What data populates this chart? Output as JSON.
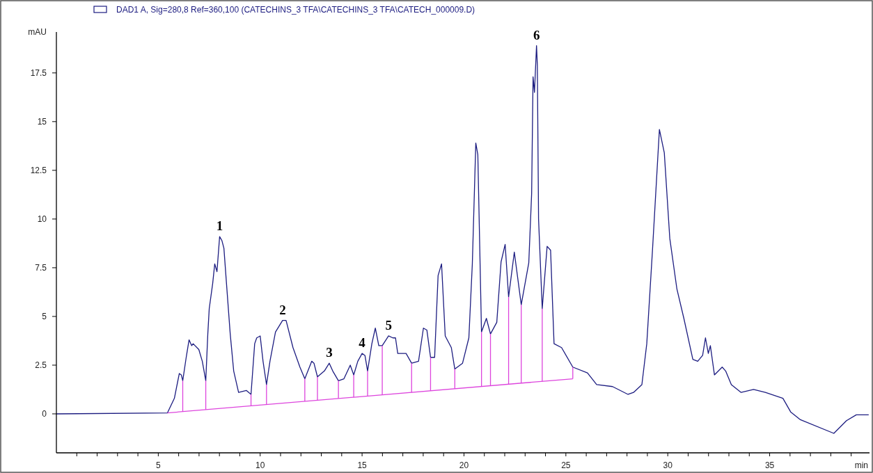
{
  "chart_data": {
    "type": "line",
    "xlabel": "min",
    "ylabel": "mAU",
    "legend": "top left",
    "grid": false,
    "marker": "none",
    "line_style": "solid",
    "xlim": [
      0,
      39.9
    ],
    "ylim": [
      -2,
      19.6
    ],
    "xticks": [
      {
        "value": 1,
        "label": null
      },
      {
        "value": 2,
        "label": null
      },
      {
        "value": 3,
        "label": null
      },
      {
        "value": 4,
        "label": null
      },
      5,
      {
        "value": 6,
        "label": null
      },
      {
        "value": 7,
        "label": null
      },
      {
        "value": 8,
        "label": null
      },
      {
        "value": 9,
        "label": null
      },
      10,
      {
        "value": 11,
        "label": null
      },
      {
        "value": 12,
        "label": null
      },
      {
        "value": 13,
        "label": null
      },
      {
        "value": 14,
        "label": null
      },
      15,
      {
        "value": 16,
        "label": null
      },
      {
        "value": 17,
        "label": null
      },
      {
        "value": 18,
        "label": null
      },
      {
        "value": 19,
        "label": null
      },
      20,
      {
        "value": 21,
        "label": null
      },
      {
        "value": 22,
        "label": null
      },
      {
        "value": 23,
        "label": null
      },
      {
        "value": 24,
        "label": null
      },
      25,
      {
        "value": 26,
        "label": null
      },
      {
        "value": 27,
        "label": null
      },
      {
        "value": 28,
        "label": null
      },
      {
        "value": 29,
        "label": null
      },
      30,
      {
        "value": 31,
        "label": null
      },
      {
        "value": 32,
        "label": null
      },
      {
        "value": 33,
        "label": null
      },
      {
        "value": 34,
        "label": null
      },
      35,
      {
        "value": 36,
        "label": null
      },
      {
        "value": 37,
        "label": null
      },
      {
        "value": 38,
        "label": null
      },
      {
        "value": 39,
        "label": null
      }
    ],
    "yticks": [
      0,
      2.5,
      5,
      7.5,
      10,
      12.5,
      15,
      17.5
    ],
    "series": [
      {
        "name": "DAD1 A, Sig=280,8 Ref=360,100 (CATECHINS_3 TFA\\CATECHINS_3 TFA\\CATECH_000009.D)",
        "color": "#1c1c80",
        "x": [
          0,
          5.45,
          5.79,
          6.03,
          6.13,
          6.2,
          6.37,
          6.51,
          6.64,
          6.71,
          6.99,
          7.16,
          7.33,
          7.43,
          7.5,
          7.67,
          7.77,
          7.88,
          8.01,
          8.12,
          8.22,
          8.36,
          8.53,
          8.7,
          8.94,
          9.32,
          9.55,
          9.73,
          9.83,
          10.0,
          10.14,
          10.31,
          10.48,
          10.75,
          11.1,
          11.27,
          11.61,
          11.95,
          12.19,
          12.53,
          12.64,
          12.81,
          13.15,
          13.39,
          13.56,
          13.84,
          14.11,
          14.42,
          14.59,
          14.79,
          15.0,
          15.14,
          15.27,
          15.48,
          15.65,
          15.82,
          15.99,
          16.3,
          16.51,
          16.64,
          16.75,
          17.16,
          17.43,
          17.77,
          18.01,
          18.18,
          18.36,
          18.56,
          18.73,
          18.9,
          19.08,
          19.38,
          19.55,
          19.93,
          20.24,
          20.41,
          20.58,
          20.68,
          20.86,
          21.1,
          21.3,
          21.61,
          21.82,
          22.02,
          22.19,
          22.47,
          22.81,
          23.18,
          23.32,
          23.39,
          23.46,
          23.56,
          23.6,
          23.66,
          23.84,
          24.08,
          24.25,
          24.42,
          24.79,
          25.34,
          26.06,
          26.51,
          27.29,
          28.05,
          28.32,
          28.73,
          28.97,
          29.25,
          29.59,
          29.83,
          30.1,
          30.45,
          30.79,
          31.23,
          31.47,
          31.71,
          31.85,
          31.99,
          32.09,
          32.29,
          32.67,
          32.84,
          33.12,
          33.6,
          34.21,
          34.79,
          35.65,
          36.03,
          36.51,
          38.15,
          38.77,
          39.25,
          39.86
        ],
        "values": [
          0,
          0.05,
          0.8,
          2.07,
          2.0,
          1.7,
          2.9,
          3.8,
          3.5,
          3.6,
          3.3,
          2.7,
          1.7,
          4.1,
          5.4,
          6.7,
          7.7,
          7.3,
          9.1,
          8.9,
          8.5,
          6.5,
          4.1,
          2.2,
          1.1,
          1.2,
          1.0,
          3.6,
          3.9,
          4.0,
          2.7,
          1.5,
          2.7,
          4.2,
          4.8,
          4.8,
          3.4,
          2.4,
          1.8,
          2.7,
          2.6,
          1.9,
          2.2,
          2.6,
          2.2,
          1.7,
          1.8,
          2.5,
          2.0,
          2.7,
          3.1,
          3.0,
          2.2,
          3.6,
          4.4,
          3.5,
          3.5,
          4.0,
          3.9,
          3.9,
          3.1,
          3.1,
          2.6,
          2.7,
          4.4,
          4.3,
          2.9,
          2.9,
          7.1,
          7.7,
          4.0,
          3.4,
          2.3,
          2.6,
          3.9,
          7.7,
          13.9,
          13.3,
          4.2,
          4.9,
          4.1,
          4.7,
          7.8,
          8.7,
          6.0,
          8.3,
          5.6,
          7.75,
          11.3,
          17.3,
          16.5,
          18.9,
          17.9,
          10.0,
          5.4,
          8.6,
          8.4,
          3.6,
          3.4,
          2.4,
          2.1,
          1.5,
          1.4,
          1.0,
          1.1,
          1.5,
          3.6,
          8.4,
          14.6,
          13.4,
          9.0,
          6.4,
          4.9,
          2.8,
          2.7,
          3.0,
          3.9,
          3.1,
          3.5,
          2.0,
          2.4,
          2.2,
          1.5,
          1.1,
          1.25,
          1.1,
          0.8,
          0.1,
          -0.3,
          -1.0,
          -0.35,
          -0.05,
          -0.05
        ]
      },
      {
        "color": "#dd44dd",
        "x": [
          5.45,
          25.34
        ],
        "values": [
          0.05,
          1.8
        ]
      },
      {
        "color": "#dd44dd",
        "x": [
          6.2,
          6.2
        ],
        "values": [
          0.12,
          1.7
        ]
      },
      {
        "color": "#dd44dd",
        "x": [
          7.33,
          7.33
        ],
        "values": [
          0.22,
          1.7
        ]
      },
      {
        "color": "#dd44dd",
        "x": [
          9.55,
          9.55
        ],
        "values": [
          0.41,
          1.0
        ]
      },
      {
        "color": "#dd44dd",
        "x": [
          10.31,
          10.31
        ],
        "values": [
          0.48,
          1.5
        ]
      },
      {
        "color": "#dd44dd",
        "x": [
          12.19,
          12.19
        ],
        "values": [
          0.64,
          1.8
        ]
      },
      {
        "color": "#dd44dd",
        "x": [
          12.81,
          12.81
        ],
        "values": [
          0.7,
          1.9
        ]
      },
      {
        "color": "#dd44dd",
        "x": [
          13.84,
          13.84
        ],
        "values": [
          0.79,
          1.7
        ]
      },
      {
        "color": "#dd44dd",
        "x": [
          14.59,
          14.59
        ],
        "values": [
          0.85,
          2.0
        ]
      },
      {
        "color": "#dd44dd",
        "x": [
          15.27,
          15.27
        ],
        "values": [
          0.91,
          2.2
        ]
      },
      {
        "color": "#dd44dd",
        "x": [
          15.99,
          15.99
        ],
        "values": [
          0.98,
          3.5
        ]
      },
      {
        "color": "#dd44dd",
        "x": [
          17.43,
          17.43
        ],
        "values": [
          1.1,
          2.6
        ]
      },
      {
        "color": "#dd44dd",
        "x": [
          18.36,
          18.36
        ],
        "values": [
          1.19,
          2.9
        ]
      },
      {
        "color": "#dd44dd",
        "x": [
          19.55,
          19.55
        ],
        "values": [
          1.29,
          2.3
        ]
      },
      {
        "color": "#dd44dd",
        "x": [
          20.86,
          20.86
        ],
        "values": [
          1.41,
          4.2
        ]
      },
      {
        "color": "#dd44dd",
        "x": [
          21.3,
          21.3
        ],
        "values": [
          1.44,
          4.1
        ]
      },
      {
        "color": "#dd44dd",
        "x": [
          22.19,
          22.19
        ],
        "values": [
          1.52,
          6.0
        ]
      },
      {
        "color": "#dd44dd",
        "x": [
          22.81,
          22.81
        ],
        "values": [
          1.58,
          5.6
        ]
      },
      {
        "color": "#dd44dd",
        "x": [
          23.84,
          23.84
        ],
        "values": [
          1.67,
          5.4
        ]
      },
      {
        "color": "#dd44dd",
        "x": [
          25.34,
          25.34
        ],
        "values": [
          1.8,
          2.4
        ]
      }
    ],
    "annotations": [
      {
        "text": "1",
        "x": 8.01,
        "y": 9.1
      },
      {
        "text": "2",
        "x": 11.1,
        "y": 4.8
      },
      {
        "text": "3",
        "x": 13.39,
        "y": 2.6
      },
      {
        "text": "4",
        "x": 15.0,
        "y": 3.1
      },
      {
        "text": "5",
        "x": 16.3,
        "y": 4.0
      },
      {
        "text": "6",
        "x": 23.56,
        "y": 18.9
      }
    ]
  }
}
